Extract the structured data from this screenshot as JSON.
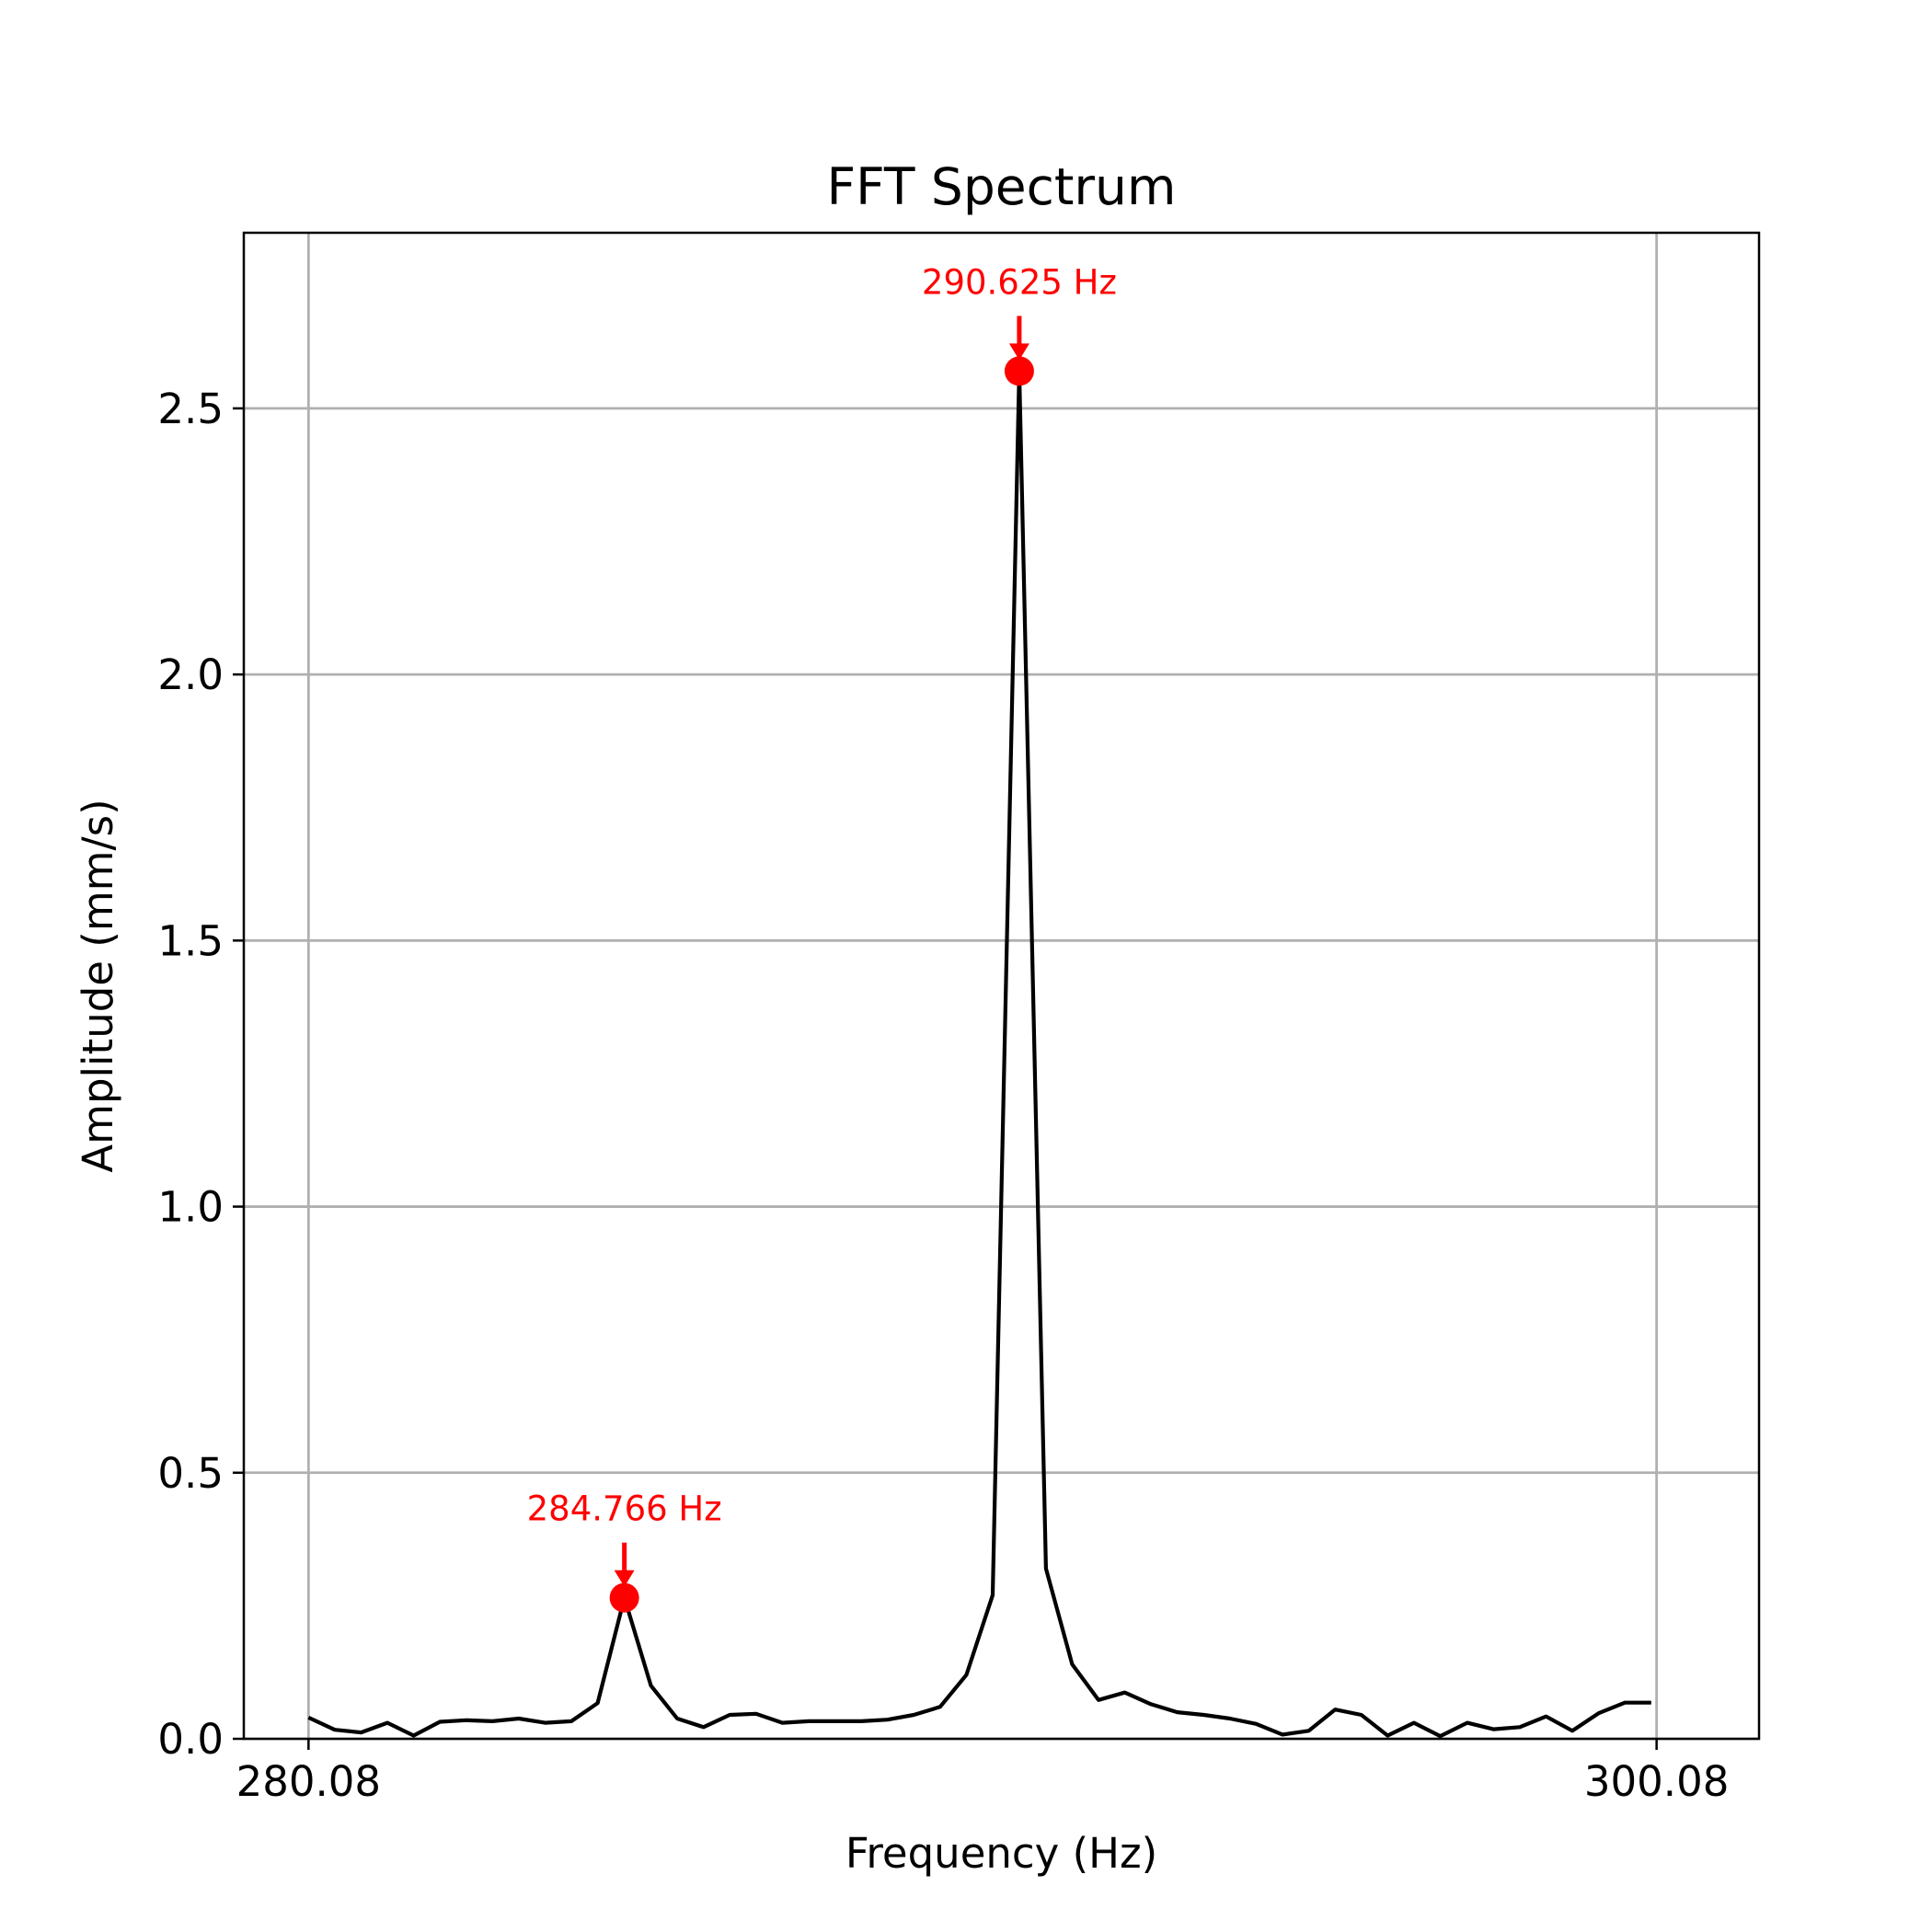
{
  "chart_data": {
    "type": "line",
    "title": "FFT Spectrum",
    "xlabel": "Frequency (Hz)",
    "ylabel": "Amplitude (mm/s)",
    "xlim": [
      279.12,
      301.6
    ],
    "ylim": [
      0,
      2.83
    ],
    "xticks": [
      280.08,
      300.08
    ],
    "xtick_labels": [
      "280.08",
      "300.08"
    ],
    "yticks": [
      0.0,
      0.5,
      1.0,
      1.5,
      2.0,
      2.5
    ],
    "ytick_labels": [
      "0.0",
      "0.5",
      "1.0",
      "1.5",
      "2.0",
      "2.5"
    ],
    "grid": true,
    "colors": {
      "line": "#000000",
      "peak": "#ff0000",
      "grid": "#b0b0b0"
    },
    "series": [
      {
        "x": [
          280.08,
          280.47,
          280.86,
          281.25,
          281.64,
          282.03,
          282.42,
          282.81,
          283.2,
          283.59,
          283.98,
          284.37,
          284.766,
          285.16,
          285.55,
          285.94,
          286.33,
          286.72,
          287.11,
          287.5,
          287.89,
          288.28,
          288.67,
          289.06,
          289.45,
          289.84,
          290.23,
          290.625,
          291.02,
          291.41,
          291.8,
          292.19,
          292.58,
          292.97,
          293.36,
          293.75,
          294.14,
          294.53,
          294.92,
          295.31,
          295.7,
          296.09,
          296.48,
          296.87,
          297.27,
          297.66,
          298.05,
          298.44,
          298.83,
          299.22,
          299.61,
          300.0
        ],
        "y": [
          0.04,
          0.017,
          0.012,
          0.03,
          0.006,
          0.032,
          0.035,
          0.033,
          0.038,
          0.03,
          0.033,
          0.067,
          0.265,
          0.1,
          0.038,
          0.022,
          0.045,
          0.047,
          0.03,
          0.033,
          0.033,
          0.033,
          0.036,
          0.045,
          0.06,
          0.12,
          0.27,
          2.57,
          0.32,
          0.14,
          0.073,
          0.087,
          0.065,
          0.05,
          0.045,
          0.038,
          0.028,
          0.008,
          0.015,
          0.055,
          0.045,
          0.006,
          0.03,
          0.005,
          0.03,
          0.018,
          0.022,
          0.042,
          0.015,
          0.048,
          0.068,
          0.068
        ]
      }
    ],
    "annotations": [
      {
        "x": 284.766,
        "y": 0.265,
        "label": "284.766 Hz"
      },
      {
        "x": 290.625,
        "y": 2.57,
        "label": "290.625 Hz"
      }
    ]
  }
}
